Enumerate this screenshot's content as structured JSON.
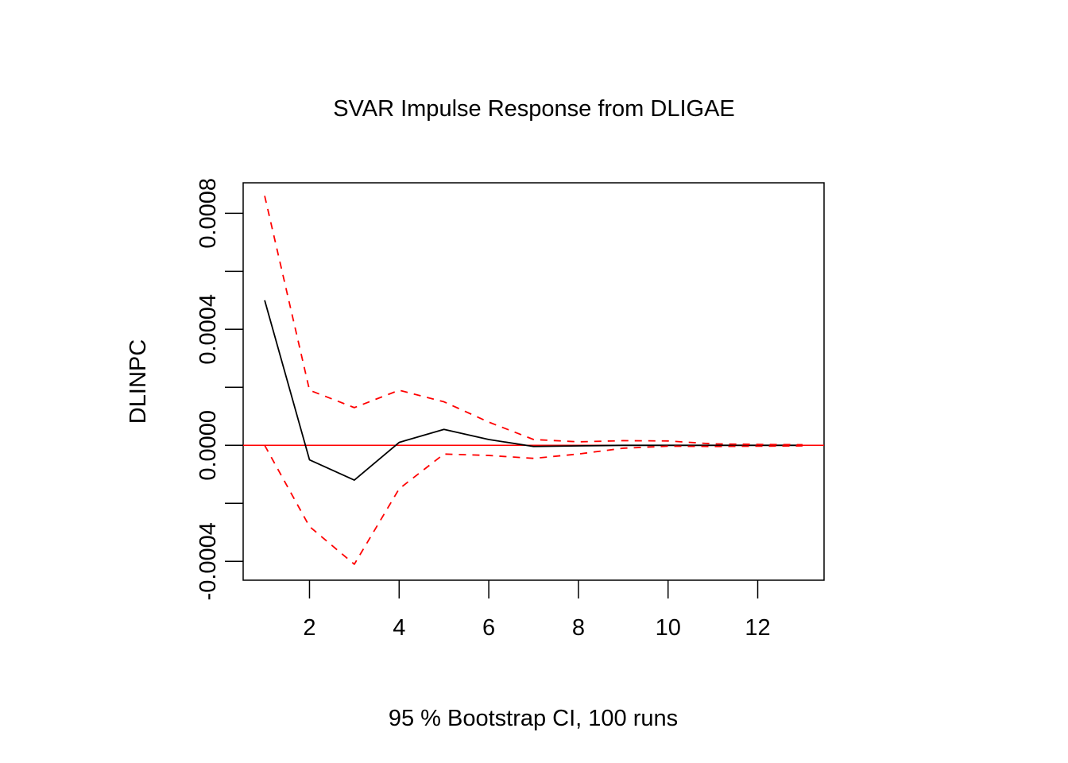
{
  "chart_data": {
    "type": "line",
    "title": "SVAR Impulse Response from DLIGAE",
    "xlabel": "95 % Bootstrap CI,  100 runs",
    "ylabel": "DLINPC",
    "x": [
      1,
      2,
      3,
      4,
      5,
      6,
      7,
      8,
      9,
      10,
      11,
      12,
      13
    ],
    "xlim": [
      0.52,
      13.48
    ],
    "ylim": [
      -0.000465,
      0.000905
    ],
    "x_ticks": [
      2,
      4,
      6,
      8,
      10,
      12
    ],
    "y_ticks": [
      -0.0004,
      -0.0002,
      0.0,
      0.0002,
      0.0004,
      0.0006,
      0.0008
    ],
    "y_tick_labels": [
      {
        "value": -0.0004,
        "label": "-0.0004"
      },
      {
        "value": 0.0,
        "label": "0.0000"
      },
      {
        "value": 0.0004,
        "label": "0.0004"
      },
      {
        "value": 0.0008,
        "label": "0.0008"
      }
    ],
    "series": [
      {
        "style": "solid",
        "color": "#000000",
        "values": [
          0.0005,
          -5e-05,
          -0.00012,
          1e-05,
          5.5e-05,
          2e-05,
          -4e-06,
          -2e-06,
          0.0,
          0.0,
          0.0,
          0.0,
          0.0
        ]
      },
      {
        "style": "dashed",
        "color": "#ff0000",
        "values": [
          0.00086,
          0.00019,
          0.00013,
          0.00019,
          0.00015,
          8e-05,
          2e-05,
          1.2e-05,
          1.6e-05,
          1.5e-05,
          5e-06,
          3e-06,
          2e-06
        ]
      },
      {
        "style": "dashed",
        "color": "#ff0000",
        "values": [
          0.0,
          -0.00028,
          -0.00041,
          -0.00015,
          -3e-05,
          -3.5e-05,
          -4.5e-05,
          -3e-05,
          -1e-05,
          -3e-06,
          -4e-06,
          -3e-06,
          -2e-06
        ]
      }
    ],
    "reference_lines": [
      {
        "orientation": "horizontal",
        "value": 0.0,
        "color": "#ff0000"
      }
    ],
    "grid": false,
    "legend": false
  }
}
